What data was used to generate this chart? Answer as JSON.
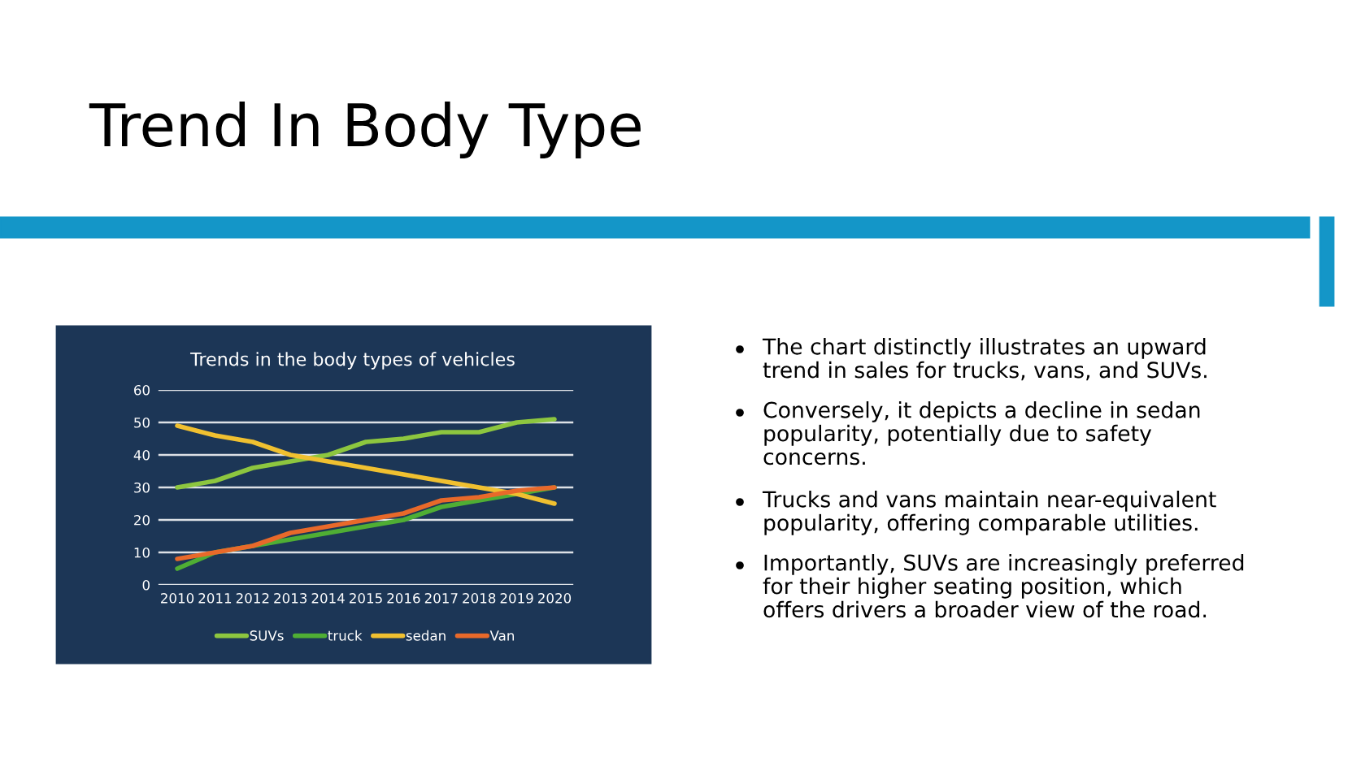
{
  "chart_data": {
    "type": "line",
    "title": "Trend In Body Type",
    "subtitle": "Trends in the body types of vehicles",
    "categories": [
      "2010",
      "2011",
      "2012",
      "2013",
      "2014",
      "2015",
      "2016",
      "2017",
      "2018",
      "2019",
      "2020"
    ],
    "series": [
      {
        "name": "SUVs",
        "color": "#8dc63f",
        "values": [
          30,
          32,
          36,
          38,
          40,
          44,
          45,
          47,
          47,
          50,
          51
        ]
      },
      {
        "name": "truck",
        "color": "#4fae34",
        "values": [
          5,
          10,
          12,
          14,
          16,
          18,
          20,
          24,
          26,
          28,
          30
        ]
      },
      {
        "name": "sedan",
        "color": "#f0c030",
        "values": [
          49,
          46,
          44,
          40,
          38,
          36,
          34,
          32,
          30,
          28,
          25
        ]
      },
      {
        "name": "Van",
        "color": "#e8692a",
        "values": [
          8,
          10,
          12,
          16,
          18,
          20,
          22,
          26,
          27,
          29,
          30
        ]
      }
    ],
    "ylim": [
      0,
      60
    ],
    "yticks": [
      0,
      10,
      20,
      30,
      40,
      50,
      60
    ],
    "grid": "y",
    "legend": "bottom",
    "marker": "none",
    "line_style": "solid",
    "annotations": [
      "The chart distinctly illustrates an upward trend in sales for trucks, vans, and SUVs.",
      "Conversely, it depicts a decline in sedan popularity, potentially due to safety concerns.",
      "Trucks and vans maintain near-equivalent popularity, offering comparable utilities.",
      "Importantly, SUVs are increasingly preferred for their higher seating position, which offers drivers a broader view of the road."
    ]
  }
}
